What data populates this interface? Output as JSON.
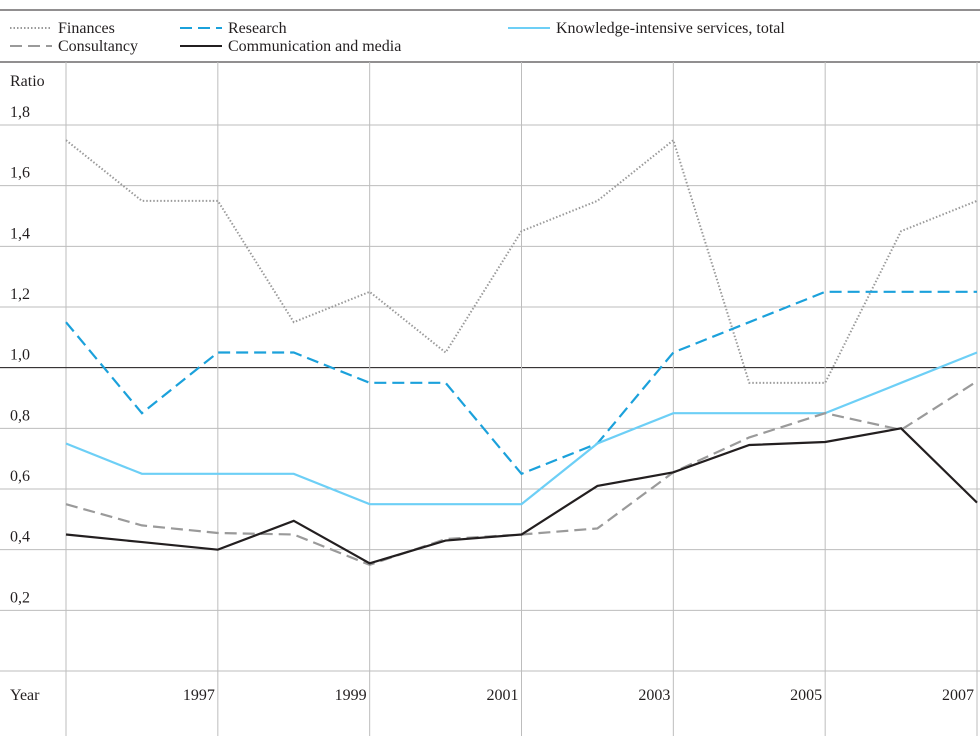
{
  "chart_data": {
    "type": "line",
    "ylabel": "Ratio",
    "xlabel": "Year",
    "x": [
      1995,
      1996,
      1997,
      1998,
      1999,
      2000,
      2001,
      2002,
      2003,
      2004,
      2005,
      2006,
      2007
    ],
    "xlim": [
      1995,
      2007
    ],
    "xticks": [
      1997,
      1999,
      2001,
      2003,
      2005,
      2007
    ],
    "ylim": [
      0,
      1.8
    ],
    "yticks": [
      {
        "value": 0.2,
        "label": "0,2"
      },
      {
        "value": 0.4,
        "label": "0,4"
      },
      {
        "value": 0.6,
        "label": "0,6"
      },
      {
        "value": 0.8,
        "label": "0,8"
      },
      {
        "value": 1.0,
        "label": "1,0"
      },
      {
        "value": 1.2,
        "label": "1,2"
      },
      {
        "value": 1.4,
        "label": "1,4"
      },
      {
        "value": 1.6,
        "label": "1,6"
      },
      {
        "value": 1.8,
        "label": "1,8"
      }
    ],
    "grid": true,
    "reference_line": 1.0,
    "legend": "top",
    "series": [
      {
        "name": "Finances",
        "color": "#9a9a9a",
        "dash": "dotted",
        "values": [
          1.75,
          1.55,
          1.55,
          1.15,
          1.25,
          1.05,
          1.45,
          1.55,
          1.75,
          0.95,
          0.95,
          1.45,
          1.55
        ]
      },
      {
        "name": "Research",
        "color": "#1ba1db",
        "dash": "dashed",
        "values": [
          1.15,
          0.85,
          1.05,
          1.05,
          0.95,
          0.95,
          0.65,
          0.75,
          1.05,
          1.15,
          1.25,
          1.25,
          1.25
        ]
      },
      {
        "name": "Knowledge-intensive services, total",
        "color": "#6dcff6",
        "dash": "solid",
        "values": [
          0.75,
          0.65,
          0.65,
          0.65,
          0.55,
          0.55,
          0.55,
          0.75,
          0.85,
          0.85,
          0.85,
          0.95,
          1.05
        ]
      },
      {
        "name": "Consultancy",
        "color": "#9a9a9a",
        "dash": "dashed",
        "values": [
          0.55,
          0.48,
          0.455,
          0.45,
          0.35,
          0.435,
          0.45,
          0.47,
          0.655,
          0.77,
          0.85,
          0.795,
          0.955
        ]
      },
      {
        "name": "Communication and media",
        "color": "#231f20",
        "dash": "solid",
        "values": [
          0.45,
          0.425,
          0.4,
          0.495,
          0.355,
          0.43,
          0.45,
          0.61,
          0.655,
          0.745,
          0.755,
          0.8,
          0.555
        ]
      }
    ]
  }
}
